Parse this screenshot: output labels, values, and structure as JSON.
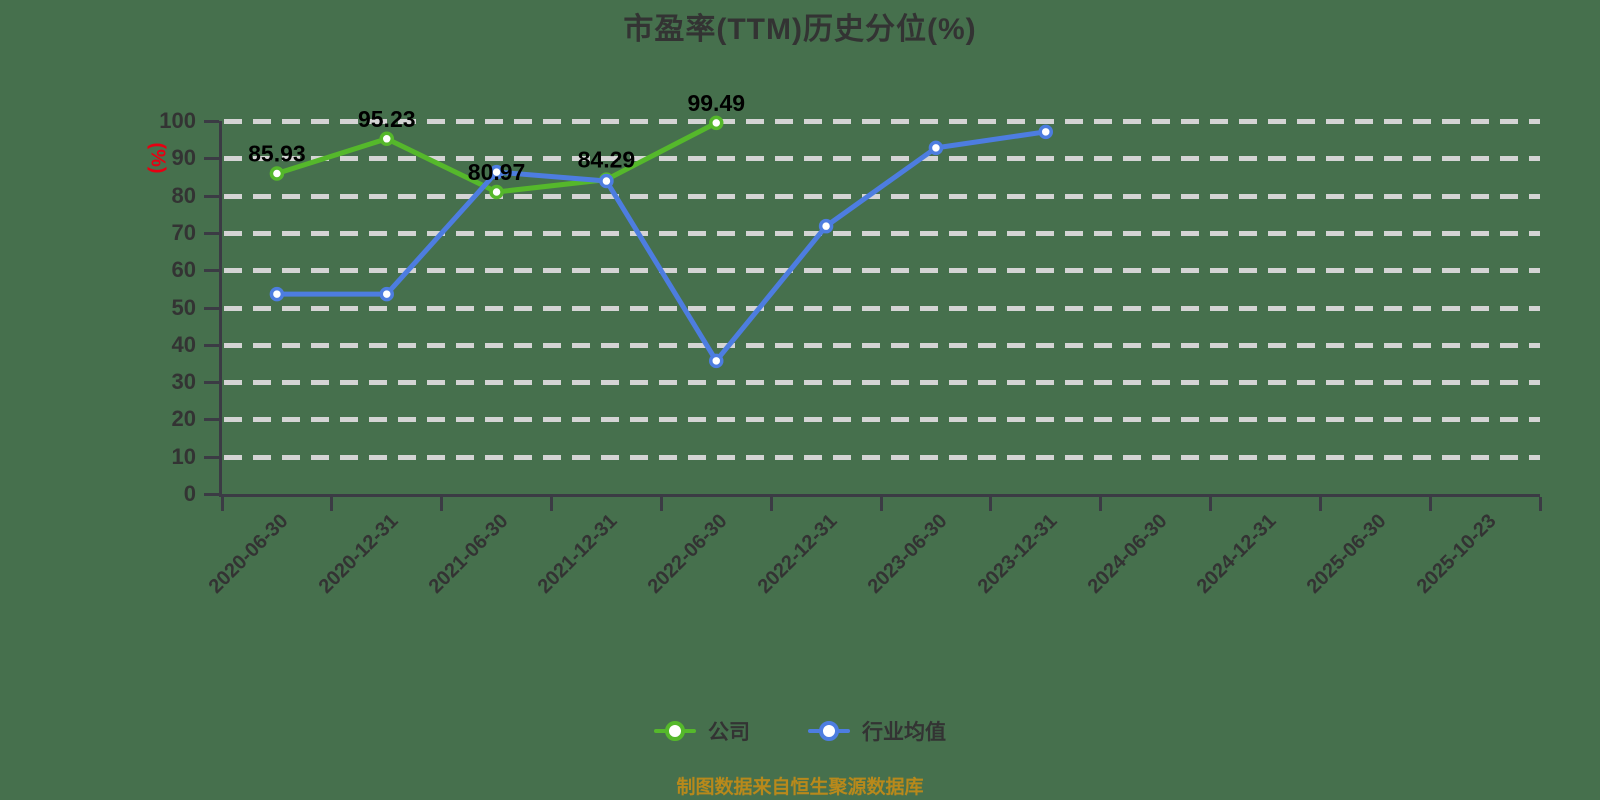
{
  "source_note": "制图数据来自恒生聚源数据库",
  "colors": {
    "bg": "#46704d",
    "grid": "#d4d4d4",
    "axis": "#3b3b44",
    "text": "#333333",
    "unit": "#e60012",
    "footer": "#b8891b",
    "label": "#000000"
  },
  "chart_data": {
    "type": "line",
    "title": "市盈率(TTM)历史分位(%)",
    "ylabel": "(%)",
    "categories": [
      "2020-06-30",
      "2020-12-31",
      "2021-06-30",
      "2021-12-31",
      "2022-06-30",
      "2022-12-31",
      "2023-06-30",
      "2023-12-31",
      "2024-06-30",
      "2024-12-31",
      "2025-06-30",
      "2025-10-23"
    ],
    "series": [
      {
        "name": "公司",
        "color": "#55b82b",
        "values": [
          85.93,
          95.23,
          80.97,
          84.29,
          99.49
        ],
        "point_labels": [
          "85.93",
          "95.23",
          "80.97",
          "84.29",
          "99.49"
        ]
      },
      {
        "name": "行业均值",
        "color": "#4d7de0",
        "values": [
          53.6,
          53.6,
          86.3,
          83.9,
          35.7,
          71.8,
          92.8,
          97.1
        ]
      }
    ],
    "ylim": [
      0,
      100
    ],
    "y_ticks": [
      0,
      10,
      20,
      30,
      40,
      50,
      60,
      70,
      80,
      90,
      100
    ],
    "grid": "horizontal-dashed",
    "legend_position": "bottom",
    "marker": "hollow-circle"
  }
}
